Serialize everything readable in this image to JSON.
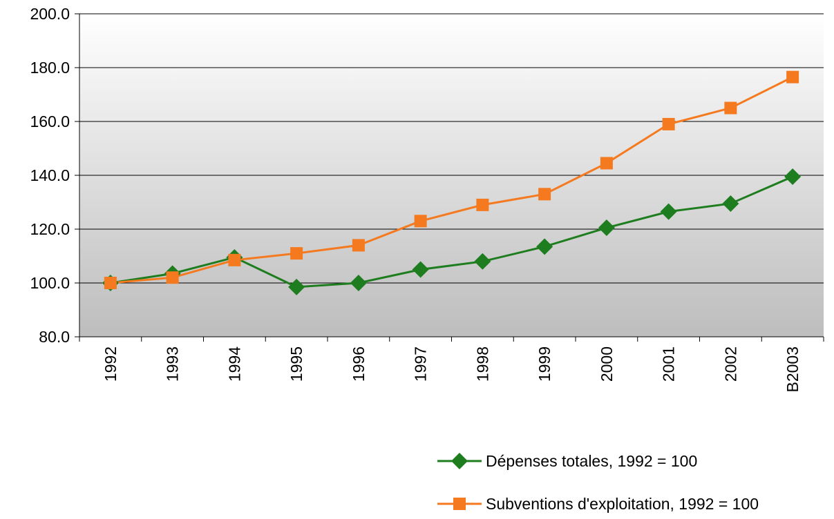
{
  "chart_data": {
    "type": "line",
    "categories": [
      "1992",
      "1993",
      "1994",
      "1995",
      "1996",
      "1997",
      "1998",
      "1999",
      "2000",
      "2001",
      "2002",
      "B2003"
    ],
    "series": [
      {
        "name": "Dépenses totales, 1992 = 100",
        "color": "#1e7d1e",
        "marker": "diamond",
        "values": [
          100,
          103.5,
          109.5,
          98.5,
          100,
          105,
          108,
          113.5,
          120.5,
          126.5,
          129.5,
          139.5
        ]
      },
      {
        "name": "Subventions d'exploitation, 1992 = 100",
        "color": "#f57a1f",
        "marker": "square",
        "values": [
          100,
          102,
          108.5,
          111,
          114,
          123,
          129,
          133,
          144.5,
          159,
          165,
          176.5
        ]
      }
    ],
    "ylim": [
      80,
      200
    ],
    "yticks": [
      {
        "value": 80,
        "label": "80.0"
      },
      {
        "value": 100,
        "label": "100.0"
      },
      {
        "value": 120,
        "label": "120.0"
      },
      {
        "value": 140,
        "label": "140.0"
      },
      {
        "value": 160,
        "label": "160.0"
      },
      {
        "value": 180,
        "label": "180.0"
      },
      {
        "value": 200,
        "label": "200.0"
      }
    ],
    "grid": true,
    "legend": "bottom"
  }
}
